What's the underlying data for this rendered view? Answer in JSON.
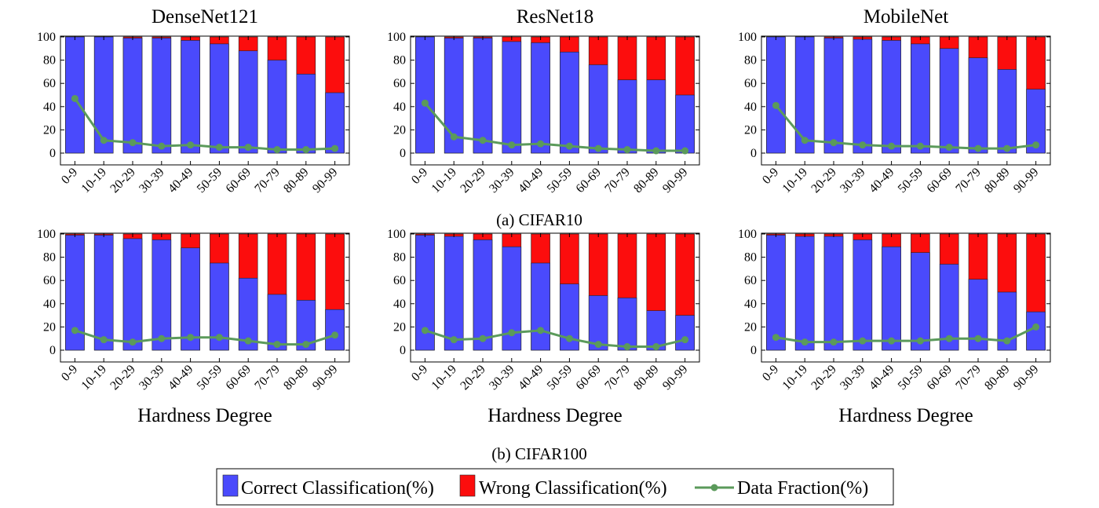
{
  "figure": {
    "caption_a": "(a) CIFAR10",
    "caption_b": "(b) CIFAR100",
    "xlabel": "Hardness Degree",
    "colors": {
      "correct": "#4a4afc",
      "wrong": "#fc0d0d",
      "fraction": "#5b9a5b"
    },
    "legend": [
      {
        "key": "correct",
        "label": "Correct Classification(%)"
      },
      {
        "key": "wrong",
        "label": "Wrong Classification(%)"
      },
      {
        "key": "fraction",
        "label": "Data Fraction(%)"
      }
    ]
  },
  "chart_data": [
    {
      "type": "bar",
      "dataset": "CIFAR10",
      "title": "DenseNet121",
      "categories": [
        "0-9",
        "10-19",
        "20-29",
        "30-39",
        "40-49",
        "50-59",
        "60-69",
        "70-79",
        "80-89",
        "90-99"
      ],
      "ylim": [
        0,
        100
      ],
      "yticks": [
        0,
        20,
        40,
        60,
        80,
        100
      ],
      "series": [
        {
          "name": "Correct Classification(%)",
          "values": [
            100,
            100,
            99,
            99,
            97,
            94,
            88,
            80,
            68,
            52
          ]
        },
        {
          "name": "Wrong Classification(%)",
          "values": [
            0,
            0,
            1,
            1,
            3,
            6,
            12,
            20,
            32,
            48
          ]
        },
        {
          "name": "Data Fraction(%)",
          "values": [
            47,
            11,
            9,
            6,
            7,
            5,
            5,
            3,
            3,
            4
          ]
        }
      ]
    },
    {
      "type": "bar",
      "dataset": "CIFAR10",
      "title": "ResNet18",
      "categories": [
        "0-9",
        "10-19",
        "20-29",
        "30-39",
        "40-49",
        "50-59",
        "60-69",
        "70-79",
        "80-89",
        "90-99"
      ],
      "ylim": [
        0,
        100
      ],
      "yticks": [
        0,
        20,
        40,
        60,
        80,
        100
      ],
      "series": [
        {
          "name": "Correct Classification(%)",
          "values": [
            100,
            99,
            99,
            96,
            95,
            87,
            76,
            63,
            63,
            50
          ]
        },
        {
          "name": "Wrong Classification(%)",
          "values": [
            0,
            1,
            1,
            4,
            5,
            13,
            24,
            37,
            37,
            50
          ]
        },
        {
          "name": "Data Fraction(%)",
          "values": [
            43,
            14,
            11,
            7,
            8,
            6,
            4,
            3,
            2,
            2
          ]
        }
      ]
    },
    {
      "type": "bar",
      "dataset": "CIFAR10",
      "title": "MobileNet",
      "categories": [
        "0-9",
        "10-19",
        "20-29",
        "30-39",
        "40-49",
        "50-59",
        "60-69",
        "70-79",
        "80-89",
        "90-99"
      ],
      "ylim": [
        0,
        100
      ],
      "yticks": [
        0,
        20,
        40,
        60,
        80,
        100
      ],
      "series": [
        {
          "name": "Correct Classification(%)",
          "values": [
            100,
            100,
            99,
            98,
            97,
            94,
            90,
            82,
            72,
            55
          ]
        },
        {
          "name": "Wrong Classification(%)",
          "values": [
            0,
            0,
            1,
            2,
            3,
            6,
            10,
            18,
            28,
            45
          ]
        },
        {
          "name": "Data Fraction(%)",
          "values": [
            41,
            11,
            9,
            7,
            6,
            6,
            5,
            4,
            4,
            7
          ]
        }
      ]
    },
    {
      "type": "bar",
      "dataset": "CIFAR100",
      "title": "",
      "categories": [
        "0-9",
        "10-19",
        "20-29",
        "30-39",
        "40-49",
        "50-59",
        "60-69",
        "70-79",
        "80-89",
        "90-99"
      ],
      "ylim": [
        0,
        100
      ],
      "yticks": [
        0,
        20,
        40,
        60,
        80,
        100
      ],
      "series": [
        {
          "name": "Correct Classification(%)",
          "values": [
            99,
            99,
            96,
            95,
            88,
            75,
            62,
            48,
            43,
            35
          ]
        },
        {
          "name": "Wrong Classification(%)",
          "values": [
            1,
            1,
            4,
            5,
            12,
            25,
            38,
            52,
            57,
            65
          ]
        },
        {
          "name": "Data Fraction(%)",
          "values": [
            17,
            9,
            7,
            10,
            11,
            11,
            8,
            5,
            5,
            13
          ]
        }
      ]
    },
    {
      "type": "bar",
      "dataset": "CIFAR100",
      "title": "",
      "categories": [
        "0-9",
        "10-19",
        "20-29",
        "30-39",
        "40-49",
        "50-59",
        "60-69",
        "70-79",
        "80-89",
        "90-99"
      ],
      "ylim": [
        0,
        100
      ],
      "yticks": [
        0,
        20,
        40,
        60,
        80,
        100
      ],
      "series": [
        {
          "name": "Correct Classification(%)",
          "values": [
            99,
            98,
            95,
            89,
            75,
            57,
            47,
            45,
            34,
            30
          ]
        },
        {
          "name": "Wrong Classification(%)",
          "values": [
            1,
            2,
            5,
            11,
            25,
            43,
            53,
            55,
            66,
            70
          ]
        },
        {
          "name": "Data Fraction(%)",
          "values": [
            17,
            9,
            10,
            15,
            17,
            10,
            5,
            3,
            3,
            9
          ]
        }
      ]
    },
    {
      "type": "bar",
      "dataset": "CIFAR100",
      "title": "",
      "categories": [
        "0-9",
        "10-19",
        "20-29",
        "30-39",
        "40-49",
        "50-59",
        "60-69",
        "70-79",
        "80-89",
        "90-99"
      ],
      "ylim": [
        0,
        100
      ],
      "yticks": [
        0,
        20,
        40,
        60,
        80,
        100
      ],
      "series": [
        {
          "name": "Correct Classification(%)",
          "values": [
            99,
            98,
            98,
            95,
            89,
            84,
            74,
            61,
            50,
            33
          ]
        },
        {
          "name": "Wrong Classification(%)",
          "values": [
            1,
            2,
            2,
            5,
            11,
            16,
            26,
            39,
            50,
            67
          ]
        },
        {
          "name": "Data Fraction(%)",
          "values": [
            11,
            7,
            7,
            8,
            8,
            8,
            10,
            10,
            8,
            20
          ]
        }
      ]
    }
  ]
}
